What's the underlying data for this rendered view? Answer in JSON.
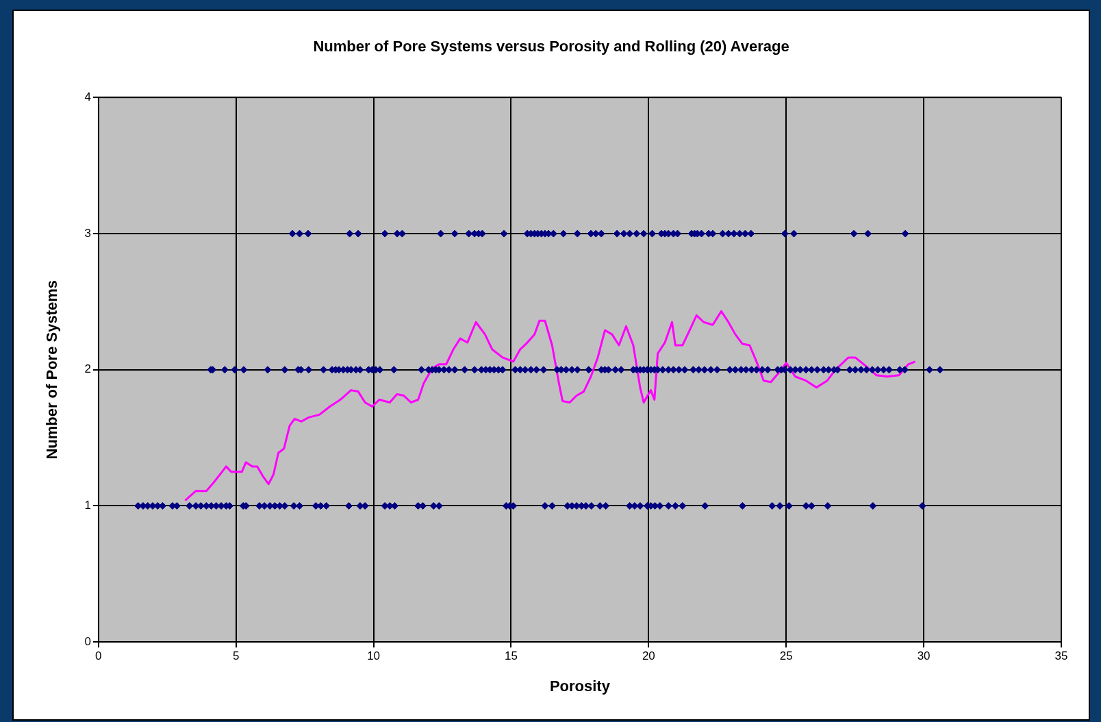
{
  "chart_data": {
    "type": "scatter",
    "title": "Number of Pore Systems versus Porosity and Rolling (20) Average",
    "xlabel": "Porosity",
    "ylabel": "Number of Pore Systems",
    "xlim": [
      0,
      35
    ],
    "xticks": [
      0,
      5,
      10,
      15,
      20,
      25,
      30,
      35
    ],
    "ylim": [
      0,
      4
    ],
    "yticks": [
      0,
      1,
      2,
      3,
      4
    ],
    "grid": true,
    "legend": false,
    "series": [
      {
        "color": "#000080",
        "marker": "diamond",
        "x": [
          7.05,
          7.31,
          7.62,
          9.13,
          9.44,
          10.41,
          10.86,
          11.04,
          12.44,
          12.95,
          13.46,
          13.67,
          13.82,
          13.95,
          14.74,
          15.59,
          15.72,
          15.85,
          15.97,
          16.1,
          16.23,
          16.36,
          16.54,
          16.9,
          17.41,
          17.9,
          18.08,
          18.28,
          18.85,
          19.1,
          19.31,
          19.56,
          19.82,
          20.13,
          20.46,
          20.59,
          20.72,
          20.9,
          21.05,
          21.56,
          21.67,
          21.77,
          21.92,
          22.18,
          22.33,
          22.69,
          22.9,
          23.1,
          23.31,
          23.51,
          23.72,
          24.95,
          25.28,
          27.46,
          27.97,
          29.33
        ],
        "values": [
          3,
          3,
          3,
          3,
          3,
          3,
          3,
          3,
          3,
          3,
          3,
          3,
          3,
          3,
          3,
          3,
          3,
          3,
          3,
          3,
          3,
          3,
          3,
          3,
          3,
          3,
          3,
          3,
          3,
          3,
          3,
          3,
          3,
          3,
          3,
          3,
          3,
          3,
          3,
          3,
          3,
          3,
          3,
          3,
          3,
          3,
          3,
          3,
          3,
          3,
          3,
          3,
          3,
          3,
          3,
          3
        ]
      },
      {
        "color": "#000080",
        "marker": "diamond",
        "x": [
          4.08,
          4.15,
          4.59,
          4.95,
          5.28,
          6.15,
          6.77,
          7.26,
          7.36,
          7.64,
          8.18,
          8.49,
          8.62,
          8.74,
          8.9,
          9.05,
          9.18,
          9.36,
          9.51,
          9.82,
          9.95,
          10.08,
          10.23,
          10.74,
          11.74,
          12.0,
          12.13,
          12.26,
          12.38,
          12.56,
          12.74,
          12.95,
          13.31,
          13.67,
          13.92,
          14.08,
          14.23,
          14.38,
          14.54,
          14.69,
          15.15,
          15.33,
          15.51,
          15.72,
          15.92,
          16.18,
          16.67,
          16.82,
          17.0,
          17.21,
          17.41,
          17.82,
          18.28,
          18.41,
          18.54,
          18.79,
          19.0,
          19.44,
          19.56,
          19.69,
          19.82,
          19.95,
          20.08,
          20.21,
          20.33,
          20.51,
          20.72,
          20.9,
          21.1,
          21.31,
          21.62,
          21.82,
          22.03,
          22.26,
          22.49,
          22.95,
          23.15,
          23.36,
          23.54,
          23.74,
          23.92,
          24.13,
          24.33,
          24.69,
          24.82,
          24.95,
          25.15,
          25.33,
          25.51,
          25.72,
          25.92,
          26.13,
          26.36,
          26.54,
          26.74,
          26.87,
          27.31,
          27.51,
          27.72,
          27.92,
          28.13,
          28.33,
          28.54,
          28.74,
          29.13,
          29.31,
          30.21,
          30.59
        ],
        "values": [
          2,
          2,
          2,
          2,
          2,
          2,
          2,
          2,
          2,
          2,
          2,
          2,
          2,
          2,
          2,
          2,
          2,
          2,
          2,
          2,
          2,
          2,
          2,
          2,
          2,
          2,
          2,
          2,
          2,
          2,
          2,
          2,
          2,
          2,
          2,
          2,
          2,
          2,
          2,
          2,
          2,
          2,
          2,
          2,
          2,
          2,
          2,
          2,
          2,
          2,
          2,
          2,
          2,
          2,
          2,
          2,
          2,
          2,
          2,
          2,
          2,
          2,
          2,
          2,
          2,
          2,
          2,
          2,
          2,
          2,
          2,
          2,
          2,
          2,
          2,
          2,
          2,
          2,
          2,
          2,
          2,
          2,
          2,
          2,
          2,
          2,
          2,
          2,
          2,
          2,
          2,
          2,
          2,
          2,
          2,
          2,
          2,
          2,
          2,
          2,
          2,
          2,
          2,
          2,
          2,
          2,
          2,
          2
        ]
      },
      {
        "color": "#000080",
        "marker": "diamond",
        "x": [
          1.44,
          1.62,
          1.79,
          1.97,
          2.15,
          2.33,
          2.69,
          2.85,
          3.31,
          3.54,
          3.72,
          3.92,
          4.1,
          4.28,
          4.46,
          4.64,
          4.77,
          5.26,
          5.36,
          5.85,
          6.03,
          6.23,
          6.41,
          6.59,
          6.77,
          7.1,
          7.31,
          7.9,
          8.08,
          8.28,
          9.1,
          9.51,
          9.69,
          10.41,
          10.59,
          10.77,
          11.62,
          11.79,
          12.18,
          12.38,
          14.82,
          14.95,
          15.08,
          16.23,
          16.49,
          17.05,
          17.21,
          17.38,
          17.56,
          17.72,
          17.92,
          18.23,
          18.44,
          19.31,
          19.49,
          19.69,
          19.95,
          20.08,
          20.23,
          20.41,
          20.72,
          20.97,
          21.23,
          22.05,
          23.41,
          24.49,
          24.77,
          25.1,
          25.72,
          25.92,
          26.51,
          28.15,
          29.95
        ],
        "values": [
          1,
          1,
          1,
          1,
          1,
          1,
          1,
          1,
          1,
          1,
          1,
          1,
          1,
          1,
          1,
          1,
          1,
          1,
          1,
          1,
          1,
          1,
          1,
          1,
          1,
          1,
          1,
          1,
          1,
          1,
          1,
          1,
          1,
          1,
          1,
          1,
          1,
          1,
          1,
          1,
          1,
          1,
          1,
          1,
          1,
          1,
          1,
          1,
          1,
          1,
          1,
          1,
          1,
          1,
          1,
          1,
          1,
          1,
          1,
          1,
          1,
          1,
          1,
          1,
          1,
          1,
          1,
          1,
          1,
          1,
          1,
          1,
          1
        ]
      },
      {
        "type": "line",
        "color": "#ff00ff",
        "marker": "none",
        "line_style": "solid",
        "x": [
          3.15,
          3.54,
          3.92,
          4.18,
          4.49,
          4.64,
          4.82,
          5.21,
          5.36,
          5.59,
          5.77,
          5.97,
          6.18,
          6.36,
          6.54,
          6.74,
          6.95,
          7.13,
          7.38,
          7.64,
          8.03,
          8.41,
          8.79,
          9.18,
          9.44,
          9.69,
          9.95,
          10.21,
          10.59,
          10.85,
          11.1,
          11.36,
          11.62,
          11.82,
          12.13,
          12.38,
          12.64,
          12.9,
          13.15,
          13.41,
          13.72,
          14.05,
          14.31,
          14.69,
          15.08,
          15.33,
          15.59,
          15.85,
          16.03,
          16.23,
          16.49,
          16.74,
          16.87,
          17.13,
          17.38,
          17.64,
          17.9,
          18.15,
          18.41,
          18.67,
          18.92,
          19.18,
          19.44,
          19.69,
          19.82,
          20.08,
          20.21,
          20.33,
          20.59,
          20.85,
          20.97,
          21.23,
          21.49,
          21.74,
          22.0,
          22.33,
          22.64,
          22.9,
          23.15,
          23.41,
          23.67,
          23.92,
          24.18,
          24.44,
          24.74,
          25.0,
          25.33,
          25.72,
          26.1,
          26.49,
          26.79,
          27.26,
          27.51,
          27.82,
          28.28,
          28.67,
          29.1,
          29.44,
          29.69
        ],
        "values": [
          1.04,
          1.11,
          1.11,
          1.17,
          1.25,
          1.29,
          1.25,
          1.25,
          1.32,
          1.29,
          1.29,
          1.22,
          1.16,
          1.23,
          1.39,
          1.42,
          1.59,
          1.64,
          1.62,
          1.65,
          1.67,
          1.73,
          1.78,
          1.85,
          1.84,
          1.76,
          1.73,
          1.78,
          1.76,
          1.82,
          1.81,
          1.76,
          1.78,
          1.9,
          2.01,
          2.04,
          2.04,
          2.15,
          2.23,
          2.2,
          2.35,
          2.26,
          2.15,
          2.09,
          2.06,
          2.15,
          2.2,
          2.26,
          2.36,
          2.36,
          2.18,
          1.9,
          1.77,
          1.76,
          1.81,
          1.84,
          1.95,
          2.09,
          2.29,
          2.26,
          2.18,
          2.32,
          2.18,
          1.87,
          1.76,
          1.85,
          1.78,
          2.12,
          2.2,
          2.35,
          2.18,
          2.18,
          2.29,
          2.4,
          2.35,
          2.33,
          2.43,
          2.35,
          2.26,
          2.19,
          2.18,
          2.06,
          1.92,
          1.91,
          1.98,
          2.05,
          1.95,
          1.92,
          1.87,
          1.92,
          2.0,
          2.09,
          2.09,
          2.04,
          1.96,
          1.95,
          1.96,
          2.04,
          2.06
        ]
      }
    ]
  }
}
